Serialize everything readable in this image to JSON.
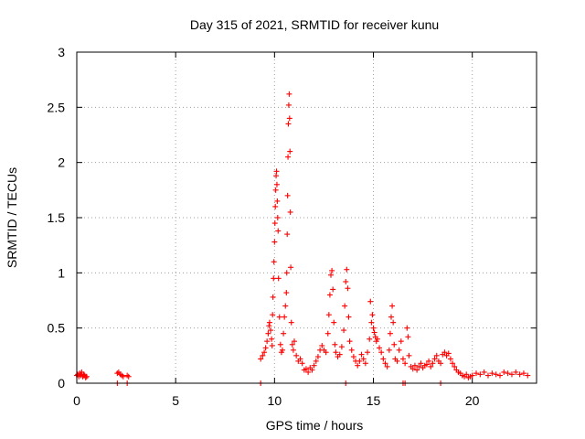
{
  "chart_data": {
    "type": "scatter",
    "title": "Day 315 of 2021, SRMTID for receiver kunu",
    "xlabel": "GPS time / hours",
    "ylabel": "SRMTID / TECUs",
    "xlim": [
      0,
      23.25
    ],
    "ylim": [
      0,
      3
    ],
    "x_ticks": [
      0,
      5,
      10,
      15,
      20
    ],
    "y_ticks": [
      0,
      0.5,
      1,
      1.5,
      2,
      2.5,
      3
    ],
    "x_tick_labels": [
      "0",
      "5",
      "10",
      "15",
      "20"
    ],
    "y_tick_labels": [
      "0",
      "0.5",
      "1",
      "1.5",
      "2",
      "2.5",
      "3"
    ],
    "grid": true,
    "legend": "none",
    "marker": "plus",
    "marker_color": "#ff0000",
    "series": [
      {
        "points": [
          [
            0.0,
            0.07
          ],
          [
            0.05,
            0.08
          ],
          [
            0.1,
            0.06
          ],
          [
            0.15,
            0.09
          ],
          [
            0.2,
            0.07
          ],
          [
            0.25,
            0.1
          ],
          [
            0.3,
            0.06
          ],
          [
            0.35,
            0.08
          ],
          [
            0.4,
            0.07
          ],
          [
            0.45,
            0.05
          ],
          [
            0.5,
            0.06
          ],
          [
            2.05,
            0.09
          ],
          [
            2.12,
            0.1
          ],
          [
            2.2,
            0.08
          ],
          [
            2.28,
            0.07
          ],
          [
            2.35,
            0.06
          ],
          [
            2.55,
            0.07
          ],
          [
            2.62,
            0.06
          ],
          [
            9.3,
            0.22
          ],
          [
            9.4,
            0.25
          ],
          [
            9.48,
            0.28
          ],
          [
            9.55,
            0.32
          ],
          [
            9.62,
            0.38
          ],
          [
            9.68,
            0.45
          ],
          [
            9.72,
            0.52
          ],
          [
            9.75,
            0.55
          ],
          [
            9.8,
            0.48
          ],
          [
            9.85,
            0.4
          ],
          [
            9.88,
            0.34
          ],
          [
            9.9,
            0.62
          ],
          [
            9.92,
            0.78
          ],
          [
            9.95,
            0.95
          ],
          [
            9.97,
            1.1
          ],
          [
            10.0,
            1.28
          ],
          [
            10.02,
            1.45
          ],
          [
            10.04,
            1.6
          ],
          [
            10.06,
            1.75
          ],
          [
            10.08,
            1.88
          ],
          [
            10.1,
            1.92
          ],
          [
            10.12,
            1.8
          ],
          [
            10.14,
            1.65
          ],
          [
            10.16,
            1.5
          ],
          [
            10.18,
            1.38
          ],
          [
            10.2,
            0.95
          ],
          [
            10.25,
            0.6
          ],
          [
            10.3,
            0.35
          ],
          [
            10.35,
            0.28
          ],
          [
            10.4,
            0.3
          ],
          [
            10.45,
            0.45
          ],
          [
            10.5,
            0.6
          ],
          [
            10.55,
            0.7
          ],
          [
            10.6,
            0.82
          ],
          [
            10.62,
            1.0
          ],
          [
            10.64,
            1.35
          ],
          [
            10.66,
            1.7
          ],
          [
            10.68,
            2.05
          ],
          [
            10.7,
            2.35
          ],
          [
            10.72,
            2.52
          ],
          [
            10.74,
            2.62
          ],
          [
            10.76,
            2.4
          ],
          [
            10.78,
            2.1
          ],
          [
            10.8,
            1.55
          ],
          [
            10.82,
            1.05
          ],
          [
            10.85,
            0.55
          ],
          [
            10.9,
            0.35
          ],
          [
            10.95,
            0.3
          ],
          [
            11.0,
            0.38
          ],
          [
            11.1,
            0.25
          ],
          [
            11.2,
            0.2
          ],
          [
            11.3,
            0.22
          ],
          [
            11.4,
            0.18
          ],
          [
            11.5,
            0.12
          ],
          [
            11.6,
            0.13
          ],
          [
            11.7,
            0.1
          ],
          [
            11.8,
            0.14
          ],
          [
            11.9,
            0.12
          ],
          [
            12.0,
            0.16
          ],
          [
            12.1,
            0.2
          ],
          [
            12.2,
            0.24
          ],
          [
            12.3,
            0.3
          ],
          [
            12.4,
            0.34
          ],
          [
            12.5,
            0.3
          ],
          [
            12.6,
            0.28
          ],
          [
            12.7,
            0.45
          ],
          [
            12.75,
            0.62
          ],
          [
            12.8,
            0.8
          ],
          [
            12.85,
            0.98
          ],
          [
            12.9,
            1.02
          ],
          [
            12.95,
            0.85
          ],
          [
            13.0,
            0.55
          ],
          [
            13.05,
            0.35
          ],
          [
            13.1,
            0.28
          ],
          [
            13.2,
            0.24
          ],
          [
            13.3,
            0.26
          ],
          [
            13.4,
            0.33
          ],
          [
            13.5,
            0.48
          ],
          [
            13.55,
            0.7
          ],
          [
            13.6,
            0.92
          ],
          [
            13.65,
            1.03
          ],
          [
            13.7,
            0.86
          ],
          [
            13.75,
            0.6
          ],
          [
            13.8,
            0.38
          ],
          [
            13.9,
            0.3
          ],
          [
            14.0,
            0.24
          ],
          [
            14.1,
            0.2
          ],
          [
            14.2,
            0.16
          ],
          [
            14.3,
            0.2
          ],
          [
            14.4,
            0.26
          ],
          [
            14.5,
            0.22
          ],
          [
            14.6,
            0.18
          ],
          [
            14.7,
            0.28
          ],
          [
            14.8,
            0.4
          ],
          [
            14.85,
            0.74
          ],
          [
            14.9,
            0.55
          ],
          [
            14.95,
            0.62
          ],
          [
            15.0,
            0.5
          ],
          [
            15.05,
            0.46
          ],
          [
            15.1,
            0.42
          ],
          [
            15.15,
            0.38
          ],
          [
            15.2,
            0.4
          ],
          [
            15.3,
            0.32
          ],
          [
            15.4,
            0.28
          ],
          [
            15.5,
            0.22
          ],
          [
            15.6,
            0.18
          ],
          [
            15.7,
            0.15
          ],
          [
            15.8,
            0.3
          ],
          [
            15.85,
            0.45
          ],
          [
            15.9,
            0.6
          ],
          [
            15.95,
            0.7
          ],
          [
            16.0,
            0.55
          ],
          [
            16.05,
            0.35
          ],
          [
            16.1,
            0.22
          ],
          [
            16.2,
            0.2
          ],
          [
            16.3,
            0.3
          ],
          [
            16.4,
            0.38
          ],
          [
            16.5,
            0.22
          ],
          [
            16.6,
            0.18
          ],
          [
            16.7,
            0.5
          ],
          [
            16.75,
            0.42
          ],
          [
            16.8,
            0.25
          ],
          [
            16.9,
            0.15
          ],
          [
            17.0,
            0.13
          ],
          [
            17.1,
            0.16
          ],
          [
            17.2,
            0.12
          ],
          [
            17.3,
            0.15
          ],
          [
            17.4,
            0.18
          ],
          [
            17.5,
            0.14
          ],
          [
            17.6,
            0.16
          ],
          [
            17.7,
            0.17
          ],
          [
            17.8,
            0.2
          ],
          [
            17.9,
            0.15
          ],
          [
            18.0,
            0.18
          ],
          [
            18.1,
            0.22
          ],
          [
            18.2,
            0.25
          ],
          [
            18.3,
            0.2
          ],
          [
            18.4,
            0.18
          ],
          [
            18.5,
            0.26
          ],
          [
            18.6,
            0.28
          ],
          [
            18.7,
            0.25
          ],
          [
            18.8,
            0.27
          ],
          [
            18.9,
            0.22
          ],
          [
            19.0,
            0.18
          ],
          [
            19.1,
            0.15
          ],
          [
            19.2,
            0.12
          ],
          [
            19.3,
            0.1
          ],
          [
            19.4,
            0.09
          ],
          [
            19.5,
            0.07
          ],
          [
            19.6,
            0.06
          ],
          [
            19.7,
            0.08
          ],
          [
            19.8,
            0.05
          ],
          [
            19.9,
            0.06
          ],
          [
            20.0,
            0.07
          ],
          [
            20.2,
            0.09
          ],
          [
            20.4,
            0.08
          ],
          [
            20.6,
            0.1
          ],
          [
            20.8,
            0.07
          ],
          [
            21.0,
            0.09
          ],
          [
            21.2,
            0.08
          ],
          [
            21.4,
            0.07
          ],
          [
            21.6,
            0.1
          ],
          [
            21.8,
            0.09
          ],
          [
            22.0,
            0.08
          ],
          [
            22.2,
            0.1
          ],
          [
            22.4,
            0.08
          ],
          [
            22.6,
            0.09
          ],
          [
            22.8,
            0.07
          ],
          [
            2.05,
            0.0
          ],
          [
            2.55,
            0.0
          ],
          [
            9.3,
            0.0
          ],
          [
            13.6,
            0.0
          ],
          [
            16.5,
            0.0
          ],
          [
            16.6,
            0.0
          ],
          [
            18.4,
            0.0
          ]
        ]
      }
    ]
  }
}
